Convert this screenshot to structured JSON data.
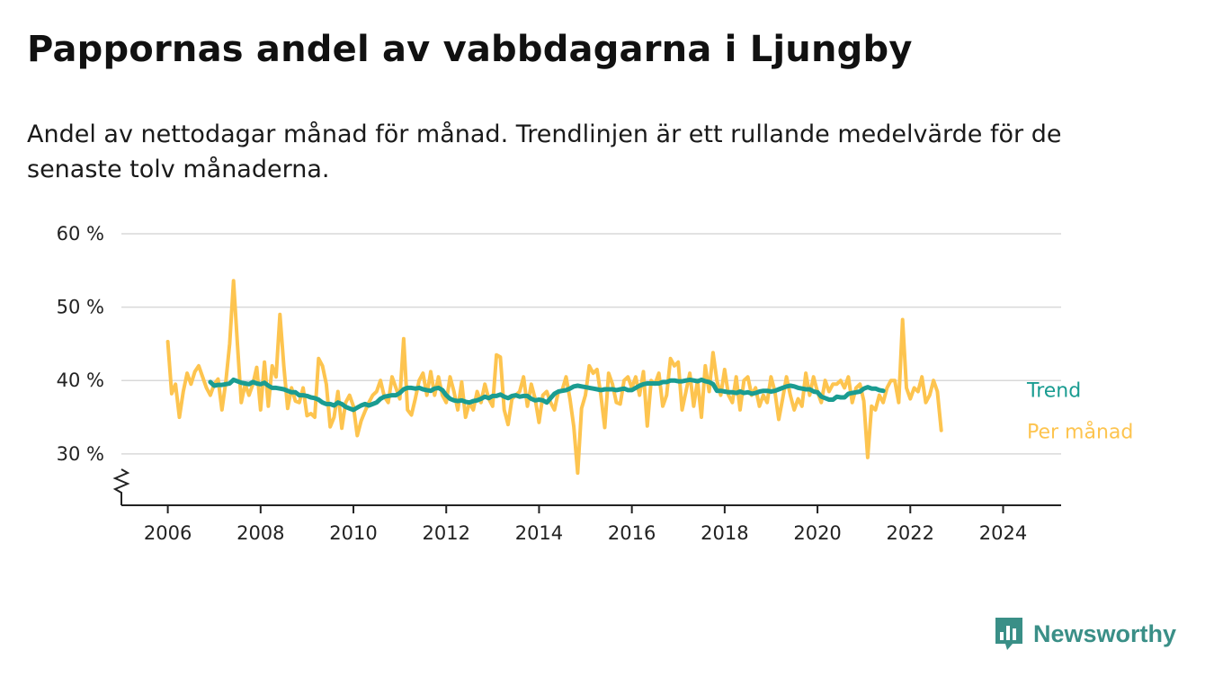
{
  "title": "Pappornas andel av vabbdagarna i Ljungby",
  "subtitle": "Andel av nettodagar månad för månad. Trendlinjen är ett rullande medelvärde för de senaste tolv månaderna.",
  "brand": "Newsworthy",
  "colors": {
    "monthly": "#fdc44f",
    "trend": "#1a9c91",
    "grid": "#d9d9d9",
    "axis": "#222222",
    "brand": "#3a8f87"
  },
  "chart_data": {
    "type": "line",
    "x_unit": "year (decimal)",
    "xlim": [
      2005.0,
      2025.25
    ],
    "ylim": [
      23,
      60
    ],
    "y_ticks": [
      30,
      40,
      50,
      60
    ],
    "y_tick_labels": [
      "30 %",
      "40 %",
      "50 %",
      "60 %"
    ],
    "x_ticks": [
      2006,
      2008,
      2010,
      2012,
      2014,
      2016,
      2018,
      2020,
      2022,
      2024
    ],
    "x_tick_labels": [
      "2006",
      "2008",
      "2010",
      "2012",
      "2014",
      "2016",
      "2018",
      "2020",
      "2022",
      "2024"
    ],
    "axis_break": true,
    "grid": true,
    "series": [
      {
        "name": "Per månad",
        "color": "#fdc44f",
        "start": 2006.0,
        "step": 0.08333,
        "values": [
          45.3,
          38.2,
          39.5,
          35.0,
          38.5,
          41.0,
          39.5,
          41.2,
          42.0,
          40.5,
          39.0,
          38.0,
          39.5,
          40.2,
          36.0,
          39.8,
          45.0,
          53.6,
          45.0,
          37.0,
          39.5,
          38.0,
          39.5,
          41.8,
          36.0,
          42.5,
          36.5,
          42.0,
          40.5,
          49.0,
          42.0,
          36.2,
          39.0,
          37.2,
          37.0,
          39.0,
          35.2,
          35.5,
          35.0,
          43.0,
          42.0,
          39.5,
          33.7,
          35.0,
          38.5,
          33.5,
          37.0,
          38.0,
          36.5,
          32.5,
          34.5,
          35.8,
          37.0,
          38.0,
          38.5,
          40.0,
          37.8,
          37.0,
          40.5,
          39.0,
          37.5,
          45.7,
          36.0,
          35.3,
          37.5,
          40.0,
          41.0,
          38.0,
          41.2,
          38.0,
          40.5,
          38.0,
          37.0,
          40.5,
          38.5,
          36.0,
          39.8,
          35.0,
          37.0,
          36.0,
          38.5,
          37.0,
          39.5,
          37.5,
          36.5,
          43.5,
          43.2,
          36.0,
          34.0,
          37.5,
          38.0,
          38.5,
          40.5,
          36.5,
          39.5,
          37.5,
          34.3,
          38.0,
          38.5,
          37.0,
          36.0,
          38.5,
          38.7,
          40.5,
          37.5,
          33.7,
          27.4,
          36.2,
          38.0,
          42.0,
          41.0,
          41.5,
          38.0,
          33.6,
          41.0,
          39.5,
          37.0,
          36.8,
          40.0,
          40.5,
          39.0,
          40.5,
          38.0,
          41.2,
          33.8,
          40.0,
          39.5,
          41.0,
          36.5,
          38.0,
          43.0,
          42.0,
          42.5,
          36.0,
          38.5,
          41.0,
          36.5,
          40.0,
          35.0,
          42.0,
          38.5,
          43.8,
          40.0,
          38.0,
          41.5,
          38.0,
          37.0,
          40.5,
          36.0,
          40.0,
          40.5,
          38.0,
          39.0,
          36.5,
          38.0,
          37.0,
          40.5,
          38.5,
          34.7,
          37.5,
          40.5,
          38.0,
          36.0,
          37.5,
          36.5,
          41.0,
          38.0,
          40.5,
          38.5,
          37.0,
          40.0,
          38.5,
          39.5,
          39.5,
          40.0,
          39.0,
          40.5,
          37.0,
          39.0,
          39.5,
          37.2,
          29.5,
          36.5,
          36.0,
          38.0,
          37.0,
          39.0,
          40.0,
          40.0,
          37.0,
          48.3,
          39.0,
          37.5,
          39.0,
          38.5,
          40.5,
          37.0,
          38.0,
          40.0,
          38.5,
          33.2
        ]
      },
      {
        "name": "Trend",
        "color": "#1a9c91",
        "start": 2006.917,
        "step": 0.08333,
        "values": [
          39.8,
          39.3,
          39.4,
          39.4,
          39.5,
          39.6,
          40.1,
          39.9,
          39.7,
          39.6,
          39.5,
          39.8,
          39.6,
          39.5,
          39.7,
          39.3,
          39.0,
          39.0,
          38.9,
          38.8,
          38.6,
          38.4,
          38.4,
          38.0,
          38.0,
          37.9,
          37.7,
          37.6,
          37.4,
          37.0,
          36.8,
          36.8,
          36.6,
          37.0,
          36.8,
          36.4,
          36.2,
          36.0,
          36.3,
          36.6,
          36.8,
          36.6,
          36.8,
          37.0,
          37.5,
          37.8,
          37.9,
          38.0,
          38.0,
          38.3,
          38.8,
          39.0,
          39.0,
          38.9,
          39.0,
          38.8,
          38.7,
          38.6,
          38.9,
          39.0,
          38.7,
          38.0,
          37.5,
          37.3,
          37.2,
          37.3,
          37.1,
          37.0,
          37.2,
          37.3,
          37.5,
          37.8,
          37.6,
          37.9,
          37.9,
          38.1,
          37.8,
          37.6,
          37.9,
          38.0,
          37.8,
          37.9,
          37.9,
          37.5,
          37.3,
          37.4,
          37.3,
          37.0,
          37.6,
          38.2,
          38.5,
          38.6,
          38.7,
          38.9,
          39.2,
          39.3,
          39.2,
          39.1,
          39.0,
          38.9,
          38.8,
          38.7,
          38.8,
          38.8,
          38.8,
          38.7,
          38.8,
          38.9,
          38.7,
          38.7,
          39.0,
          39.3,
          39.5,
          39.6,
          39.6,
          39.6,
          39.6,
          39.8,
          39.8,
          40.0,
          40.0,
          39.9,
          39.9,
          40.0,
          40.1,
          40.0,
          39.9,
          40.1,
          39.9,
          39.8,
          39.5,
          38.6,
          38.6,
          38.5,
          38.4,
          38.4,
          38.3,
          38.5,
          38.3,
          38.4,
          38.2,
          38.3,
          38.5,
          38.6,
          38.6,
          38.5,
          38.6,
          38.8,
          39.0,
          39.2,
          39.3,
          39.2,
          39.0,
          38.9,
          38.8,
          38.8,
          38.5,
          38.4,
          37.8,
          37.6,
          37.4,
          37.4,
          37.8,
          37.7,
          37.7,
          38.2,
          38.3,
          38.4,
          38.5,
          38.9,
          39.1,
          38.9,
          38.9,
          38.7,
          38.6
        ]
      }
    ]
  }
}
